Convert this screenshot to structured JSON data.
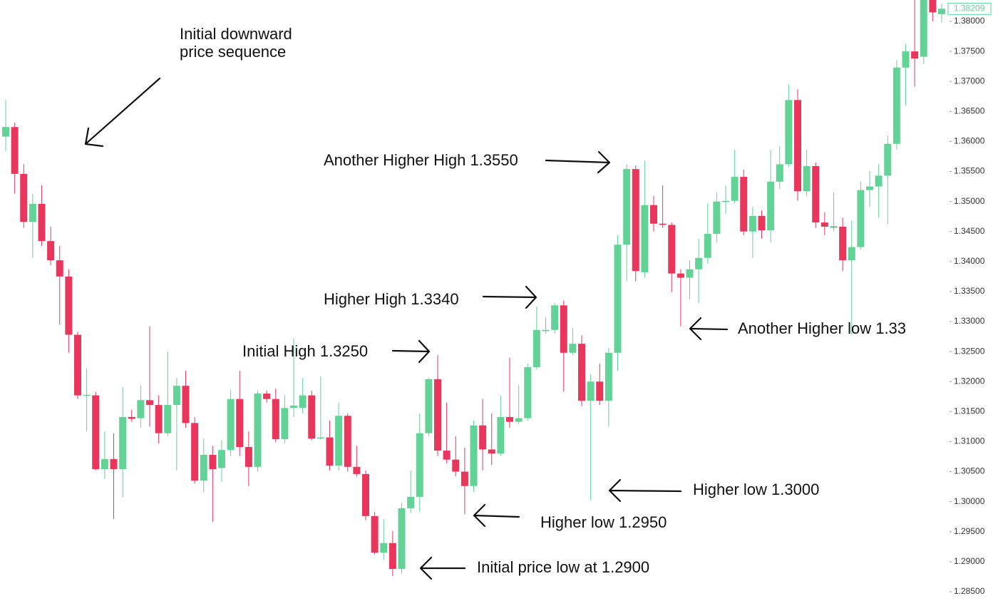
{
  "chart_data": {
    "type": "candlestick",
    "up_color": "#63d297",
    "down_color": "#e8365d",
    "ylim": [
      1.28262,
      1.38356
    ],
    "yticks": [
      {
        "value": 1.285,
        "label": "1.28500"
      },
      {
        "value": 1.29,
        "label": "1.29000"
      },
      {
        "value": 1.295,
        "label": "1.29500"
      },
      {
        "value": 1.3,
        "label": "1.30000"
      },
      {
        "value": 1.305,
        "label": "1.30500"
      },
      {
        "value": 1.31,
        "label": "1.31000"
      },
      {
        "value": 1.315,
        "label": "1.31500"
      },
      {
        "value": 1.32,
        "label": "1.32000"
      },
      {
        "value": 1.325,
        "label": "1.32500"
      },
      {
        "value": 1.33,
        "label": "1.33000"
      },
      {
        "value": 1.335,
        "label": "1.33500"
      },
      {
        "value": 1.34,
        "label": "1.34000"
      },
      {
        "value": 1.345,
        "label": "1.34500"
      },
      {
        "value": 1.35,
        "label": "1.35000"
      },
      {
        "value": 1.355,
        "label": "1.35500"
      },
      {
        "value": 1.36,
        "label": "1.36000"
      },
      {
        "value": 1.365,
        "label": "1.36500"
      },
      {
        "value": 1.37,
        "label": "1.37000"
      },
      {
        "value": 1.375,
        "label": "1.37500"
      },
      {
        "value": 1.38,
        "label": "1.38000"
      }
    ],
    "last_price": 1.38209,
    "open": [
      1.3608,
      1.3624,
      1.3546,
      1.3466,
      1.3496,
      1.3434,
      1.3402,
      1.3375,
      1.3278,
      1.3177,
      1.3177,
      1.3054,
      1.3071,
      1.3054,
      1.3141,
      1.3139,
      1.3169,
      1.3161,
      1.3114,
      1.3161,
      1.3193,
      1.3131,
      1.3035,
      1.3078,
      1.3056,
      1.3086,
      1.3171,
      1.3091,
      1.3058,
      1.318,
      1.3171,
      1.3104,
      1.3156,
      1.3156,
      1.3177,
      1.3105,
      1.3107,
      1.306,
      1.3143,
      1.3058,
      1.3046,
      1.2976,
      1.2915,
      1.2931,
      1.2888,
      1.2989,
      1.3008,
      1.3114,
      1.3204,
      1.3085,
      1.307,
      1.305,
      1.3026,
      1.3127,
      1.3087,
      1.308,
      1.3141,
      1.3133,
      1.3139,
      1.3224,
      1.3284,
      1.3286,
      1.3327,
      1.3248,
      1.3263,
      1.3168,
      1.32,
      1.3168,
      1.3248,
      1.3428,
      1.3554,
      1.3382,
      1.3494,
      1.3463,
      1.3461,
      1.338,
      1.3373,
      1.3387,
      1.3406,
      1.3446,
      1.3499,
      1.3501,
      1.3541,
      1.345,
      1.3476,
      1.3452,
      1.3533,
      1.3562,
      1.3669,
      1.3517,
      1.3559,
      1.3465,
      1.3456,
      1.3458,
      1.3402,
      1.3424,
      1.3519,
      1.3525,
      1.3543,
      1.3596,
      1.3723,
      1.375,
      1.3741,
      1.3845,
      1.3812
    ],
    "high": [
      1.3669,
      1.3631,
      1.3562,
      1.3513,
      1.3527,
      1.3458,
      1.3426,
      1.3387,
      1.3283,
      1.3222,
      1.3183,
      1.3117,
      1.3114,
      1.3191,
      1.3153,
      1.3194,
      1.3292,
      1.3177,
      1.325,
      1.3206,
      1.3218,
      1.3141,
      1.3105,
      1.3093,
      1.3102,
      1.3186,
      1.3218,
      1.3117,
      1.3185,
      1.3185,
      1.3188,
      1.3177,
      1.3272,
      1.3206,
      1.3185,
      1.3209,
      1.3135,
      1.3165,
      1.3147,
      1.3093,
      1.3052,
      1.2983,
      1.2971,
      1.2951,
      1.2998,
      1.3052,
      1.3147,
      1.3206,
      1.3244,
      1.3165,
      1.3109,
      1.309,
      1.3135,
      1.3171,
      1.3147,
      1.3177,
      1.324,
      1.3194,
      1.323,
      1.3325,
      1.3307,
      1.3331,
      1.3335,
      1.3289,
      1.3277,
      1.3212,
      1.323,
      1.3256,
      1.3444,
      1.3562,
      1.356,
      1.3568,
      1.3509,
      1.3527,
      1.3465,
      1.3387,
      1.3402,
      1.3438,
      1.3497,
      1.3515,
      1.3527,
      1.3586,
      1.3553,
      1.3491,
      1.3485,
      1.3586,
      1.3592,
      1.3695,
      1.3687,
      1.3586,
      1.3565,
      1.3482,
      1.3515,
      1.3473,
      1.3468,
      1.3533,
      1.3551,
      1.3562,
      1.361,
      1.3735,
      1.3762,
      1.3836,
      1.386,
      1.386,
      1.383
    ],
    "low": [
      1.3584,
      1.3513,
      1.3456,
      1.3406,
      1.3426,
      1.3394,
      1.3295,
      1.3248,
      1.3171,
      1.3117,
      1.3052,
      1.3038,
      1.2971,
      1.3007,
      1.3133,
      1.3123,
      1.3125,
      1.3097,
      1.3109,
      1.3052,
      1.3123,
      1.303,
      1.3016,
      1.2966,
      1.3033,
      1.3076,
      1.3076,
      1.3026,
      1.305,
      1.3165,
      1.3099,
      1.3097,
      1.3141,
      1.3147,
      1.3102,
      1.3103,
      1.3052,
      1.3052,
      1.305,
      1.3042,
      1.2969,
      1.2912,
      1.2903,
      1.2876,
      1.288,
      1.2981,
      1.2983,
      1.3109,
      1.3076,
      1.3064,
      1.3042,
      1.2979,
      1.3016,
      1.3052,
      1.3061,
      1.3076,
      1.3123,
      1.3129,
      1.3135,
      1.322,
      1.328,
      1.328,
      1.3183,
      1.3244,
      1.3159,
      1.3002,
      1.3161,
      1.3125,
      1.3218,
      1.3367,
      1.3367,
      1.3373,
      1.345,
      1.3456,
      1.3349,
      1.3292,
      1.3337,
      1.3331,
      1.3396,
      1.3432,
      1.3479,
      1.3497,
      1.3444,
      1.3406,
      1.3438,
      1.3432,
      1.3521,
      1.3557,
      1.3501,
      1.3509,
      1.3456,
      1.3444,
      1.345,
      1.3384,
      1.3278,
      1.342,
      1.3491,
      1.3473,
      1.3462,
      1.3586,
      1.366,
      1.3691,
      1.3729,
      1.38,
      1.3798
    ],
    "close": [
      1.3624,
      1.3546,
      1.3466,
      1.3496,
      1.3434,
      1.3402,
      1.3375,
      1.3278,
      1.3177,
      1.3178,
      1.3054,
      1.3071,
      1.3054,
      1.3141,
      1.3138,
      1.3169,
      1.3161,
      1.3114,
      1.3161,
      1.3193,
      1.3131,
      1.3035,
      1.3078,
      1.3054,
      1.3086,
      1.3171,
      1.3091,
      1.3058,
      1.318,
      1.3171,
      1.3104,
      1.3156,
      1.316,
      1.3177,
      1.3105,
      1.3107,
      1.306,
      1.3143,
      1.3058,
      1.3046,
      1.2976,
      1.2915,
      1.2931,
      1.2888,
      1.2989,
      1.3008,
      1.3114,
      1.3204,
      1.3085,
      1.307,
      1.305,
      1.3026,
      1.3127,
      1.3087,
      1.308,
      1.3141,
      1.3133,
      1.3139,
      1.3224,
      1.3286,
      1.3286,
      1.3327,
      1.3248,
      1.3263,
      1.3168,
      1.32,
      1.3168,
      1.3248,
      1.3428,
      1.3554,
      1.3384,
      1.3494,
      1.3463,
      1.3461,
      1.338,
      1.3373,
      1.3387,
      1.3406,
      1.3446,
      1.35,
      1.3501,
      1.3541,
      1.345,
      1.3476,
      1.3452,
      1.3533,
      1.3562,
      1.3669,
      1.3517,
      1.3559,
      1.3465,
      1.3458,
      1.3459,
      1.3402,
      1.3424,
      1.3519,
      1.3525,
      1.3543,
      1.3596,
      1.3723,
      1.375,
      1.3738,
      1.3845,
      1.3815,
      1.3821
    ],
    "caption_lines": [
      "Initial downward",
      "price sequence"
    ],
    "annotations": [
      "Another Higher High 1.3550",
      "Higher High 1.3340",
      "Initial High 1.3250",
      "Another Higher low 1.33",
      "Higher low 1.3000",
      "Higher low 1.2950",
      "Initial price low at 1.2900"
    ]
  }
}
